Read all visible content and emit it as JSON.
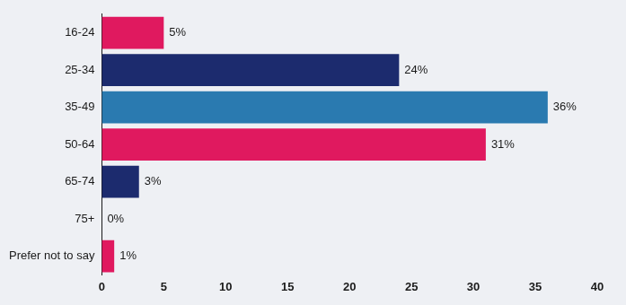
{
  "chart_data": {
    "type": "bar",
    "orientation": "horizontal",
    "categories": [
      "16-24",
      "25-34",
      "35-49",
      "50-64",
      "65-74",
      "75+",
      "Prefer not to say"
    ],
    "values": [
      5,
      24,
      36,
      31,
      3,
      0,
      1
    ],
    "value_labels": [
      "5%",
      "24%",
      "36%",
      "31%",
      "3%",
      "0%",
      "1%"
    ],
    "colors": [
      "#e0195f",
      "#1c2b6e",
      "#2a7ab0",
      "#e0195f",
      "#1c2b6e",
      "#2a7ab0",
      "#e0195f"
    ],
    "xlim": [
      0,
      40
    ],
    "xticks": [
      0,
      5,
      10,
      15,
      20,
      25,
      30,
      35,
      40
    ],
    "grid": false,
    "data_labels": true
  }
}
